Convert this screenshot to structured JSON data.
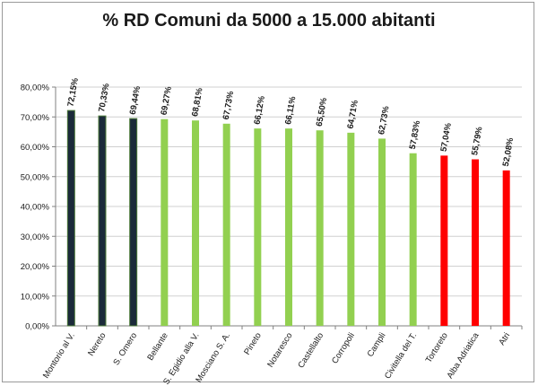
{
  "chart_data": {
    "type": "bar",
    "title": "% RD Comuni da 5000  a 15.000 abitanti",
    "xlabel": "",
    "ylabel": "",
    "ylim": [
      0,
      80
    ],
    "yticks": [
      "0,00%",
      "10,00%",
      "20,00%",
      "30,00%",
      "40,00%",
      "50,00%",
      "60,00%",
      "70,00%",
      "80,00%"
    ],
    "grid": true,
    "legend": "none",
    "categories": [
      "Montorio al V.",
      "Nereto",
      "S. Omero",
      "Bellante",
      "S. Egidio alla V.",
      "Mosciano S. A.",
      "Pineto",
      "Notaresco",
      "Castellalto",
      "Corropoli",
      "Campli",
      "Civitella del T.",
      "Tortoreto",
      "Alba Adriatica",
      "Atri"
    ],
    "values": [
      72.15,
      70.33,
      69.44,
      69.27,
      68.81,
      67.73,
      66.12,
      66.11,
      65.5,
      64.71,
      62.73,
      57.83,
      57.04,
      55.79,
      52.08
    ],
    "value_labels": [
      "72,15%",
      "70,33%",
      "69,44%",
      "69,27%",
      "68,81%",
      "67,73%",
      "66,12%",
      "66,11%",
      "65,50%",
      "64,71%",
      "62,73%",
      "57,83%",
      "57,04%",
      "55,79%",
      "52,08%"
    ],
    "bar_colors": [
      "#1b2a3a",
      "#1b2a3a",
      "#1b2a3a",
      "#92d050",
      "#92d050",
      "#92d050",
      "#92d050",
      "#92d050",
      "#92d050",
      "#92d050",
      "#92d050",
      "#92d050",
      "#ff0000",
      "#ff0000",
      "#ff0000"
    ],
    "colors": {
      "gridline": "#d0d0d0",
      "axis": "#808080",
      "text": "#1a1a1a"
    }
  }
}
